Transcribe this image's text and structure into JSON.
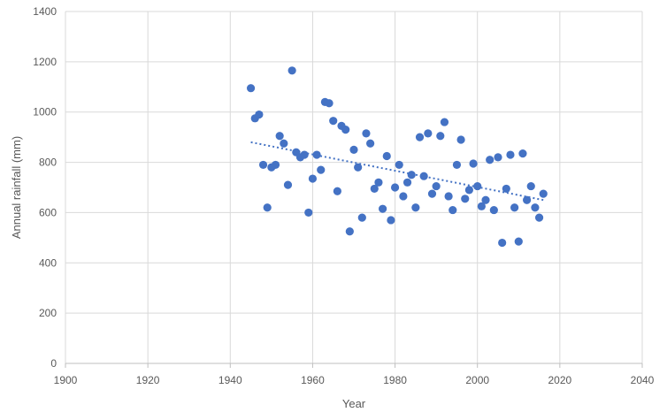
{
  "chart_data": {
    "type": "scatter",
    "xlabel": "Year",
    "ylabel": "Annual rainfall  (mm)",
    "xlim": [
      1900,
      2040
    ],
    "ylim": [
      0,
      1400
    ],
    "x_ticks": [
      "1900",
      "1920",
      "1940",
      "1960",
      "1980",
      "2000",
      "2020",
      "2040"
    ],
    "y_ticks": [
      "0",
      "200",
      "400",
      "600",
      "800",
      "1000",
      "1200",
      "1400"
    ],
    "grid": true,
    "legend": "none",
    "marker_color": "#4472c4",
    "trendline": {
      "type": "linear",
      "style": "dotted",
      "x": [
        1945,
        2016
      ],
      "y": [
        880,
        650
      ]
    },
    "series": [
      {
        "x": [
          1945,
          1946,
          1947,
          1948,
          1949,
          1950,
          1951,
          1952,
          1953,
          1954,
          1955,
          1956,
          1957,
          1958,
          1959,
          1960,
          1961,
          1962,
          1963,
          1964,
          1965,
          1966,
          1967,
          1968,
          1969,
          1970,
          1971,
          1972,
          1973,
          1974,
          1975,
          1976,
          1977,
          1978,
          1979,
          1980,
          1981,
          1982,
          1983,
          1984,
          1985,
          1986,
          1987,
          1988,
          1989,
          1990,
          1991,
          1992,
          1993,
          1994,
          1995,
          1996,
          1997,
          1998,
          1999,
          2000,
          2001,
          2002,
          2003,
          2004,
          2005,
          2006,
          2007,
          2008,
          2009,
          2010,
          2011,
          2012,
          2013,
          2014,
          2015,
          2016
        ],
        "y": [
          1095,
          975,
          990,
          790,
          620,
          780,
          790,
          905,
          875,
          710,
          1165,
          840,
          820,
          830,
          600,
          735,
          830,
          770,
          1040,
          1035,
          965,
          685,
          945,
          930,
          525,
          850,
          780,
          580,
          915,
          875,
          695,
          720,
          615,
          825,
          570,
          700,
          790,
          665,
          720,
          750,
          620,
          900,
          745,
          915,
          675,
          705,
          905,
          960,
          665,
          610,
          790,
          890,
          655,
          690,
          795,
          705,
          625,
          650,
          810,
          610,
          820,
          480,
          695,
          830,
          620,
          485,
          835,
          650,
          705,
          620,
          580,
          675
        ]
      }
    ]
  }
}
